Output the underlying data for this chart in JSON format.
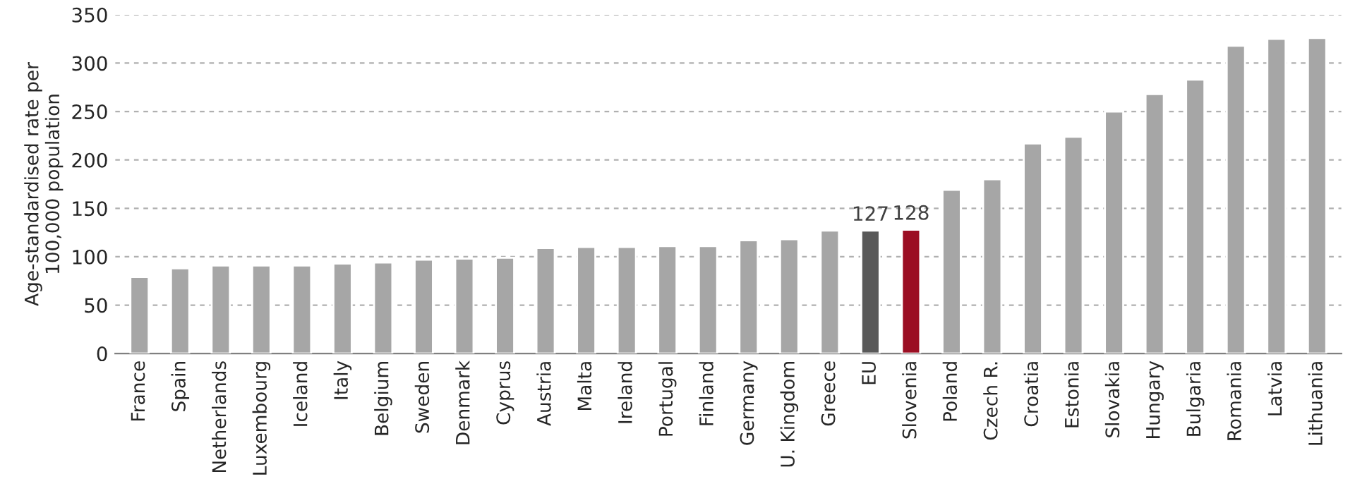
{
  "chart_data": {
    "type": "bar",
    "ylabel": "Age-standardised rate per 100,000 population",
    "categories": [
      "France",
      "Spain",
      "Netherlands",
      "Luxembourg",
      "Iceland",
      "Italy",
      "Belgium",
      "Sweden",
      "Denmark",
      "Cyprus",
      "Austria",
      "Malta",
      "Ireland",
      "Portugal",
      "Finland",
      "Germany",
      "U. Kingdom",
      "Greece",
      "EU",
      "Slovenia",
      "Poland",
      "Czech R.",
      "Croatia",
      "Estonia",
      "Slovakia",
      "Hungary",
      "Bulgaria",
      "Romania",
      "Latvia",
      "Lithuania"
    ],
    "values": [
      79,
      88,
      91,
      91,
      91,
      93,
      94,
      97,
      98,
      99,
      109,
      110,
      110,
      111,
      111,
      117,
      118,
      127,
      127,
      128,
      169,
      180,
      217,
      224,
      250,
      268,
      283,
      318,
      325,
      326
    ],
    "colors": [
      "#a6a6a6",
      "#a6a6a6",
      "#a6a6a6",
      "#a6a6a6",
      "#a6a6a6",
      "#a6a6a6",
      "#a6a6a6",
      "#a6a6a6",
      "#a6a6a6",
      "#a6a6a6",
      "#a6a6a6",
      "#a6a6a6",
      "#a6a6a6",
      "#a6a6a6",
      "#a6a6a6",
      "#a6a6a6",
      "#a6a6a6",
      "#a6a6a6",
      "#595959",
      "#9b0e23",
      "#a6a6a6",
      "#a6a6a6",
      "#a6a6a6",
      "#a6a6a6",
      "#a6a6a6",
      "#a6a6a6",
      "#a6a6a6",
      "#a6a6a6",
      "#a6a6a6",
      "#a6a6a6"
    ],
    "value_labels": [
      null,
      null,
      null,
      null,
      null,
      null,
      null,
      null,
      null,
      null,
      null,
      null,
      null,
      null,
      null,
      null,
      null,
      null,
      "127",
      "128",
      null,
      null,
      null,
      null,
      null,
      null,
      null,
      null,
      null,
      null
    ],
    "ylim": [
      0,
      350
    ],
    "yticks": [
      0,
      50,
      100,
      150,
      200,
      250,
      300,
      350
    ],
    "grid": "y"
  }
}
